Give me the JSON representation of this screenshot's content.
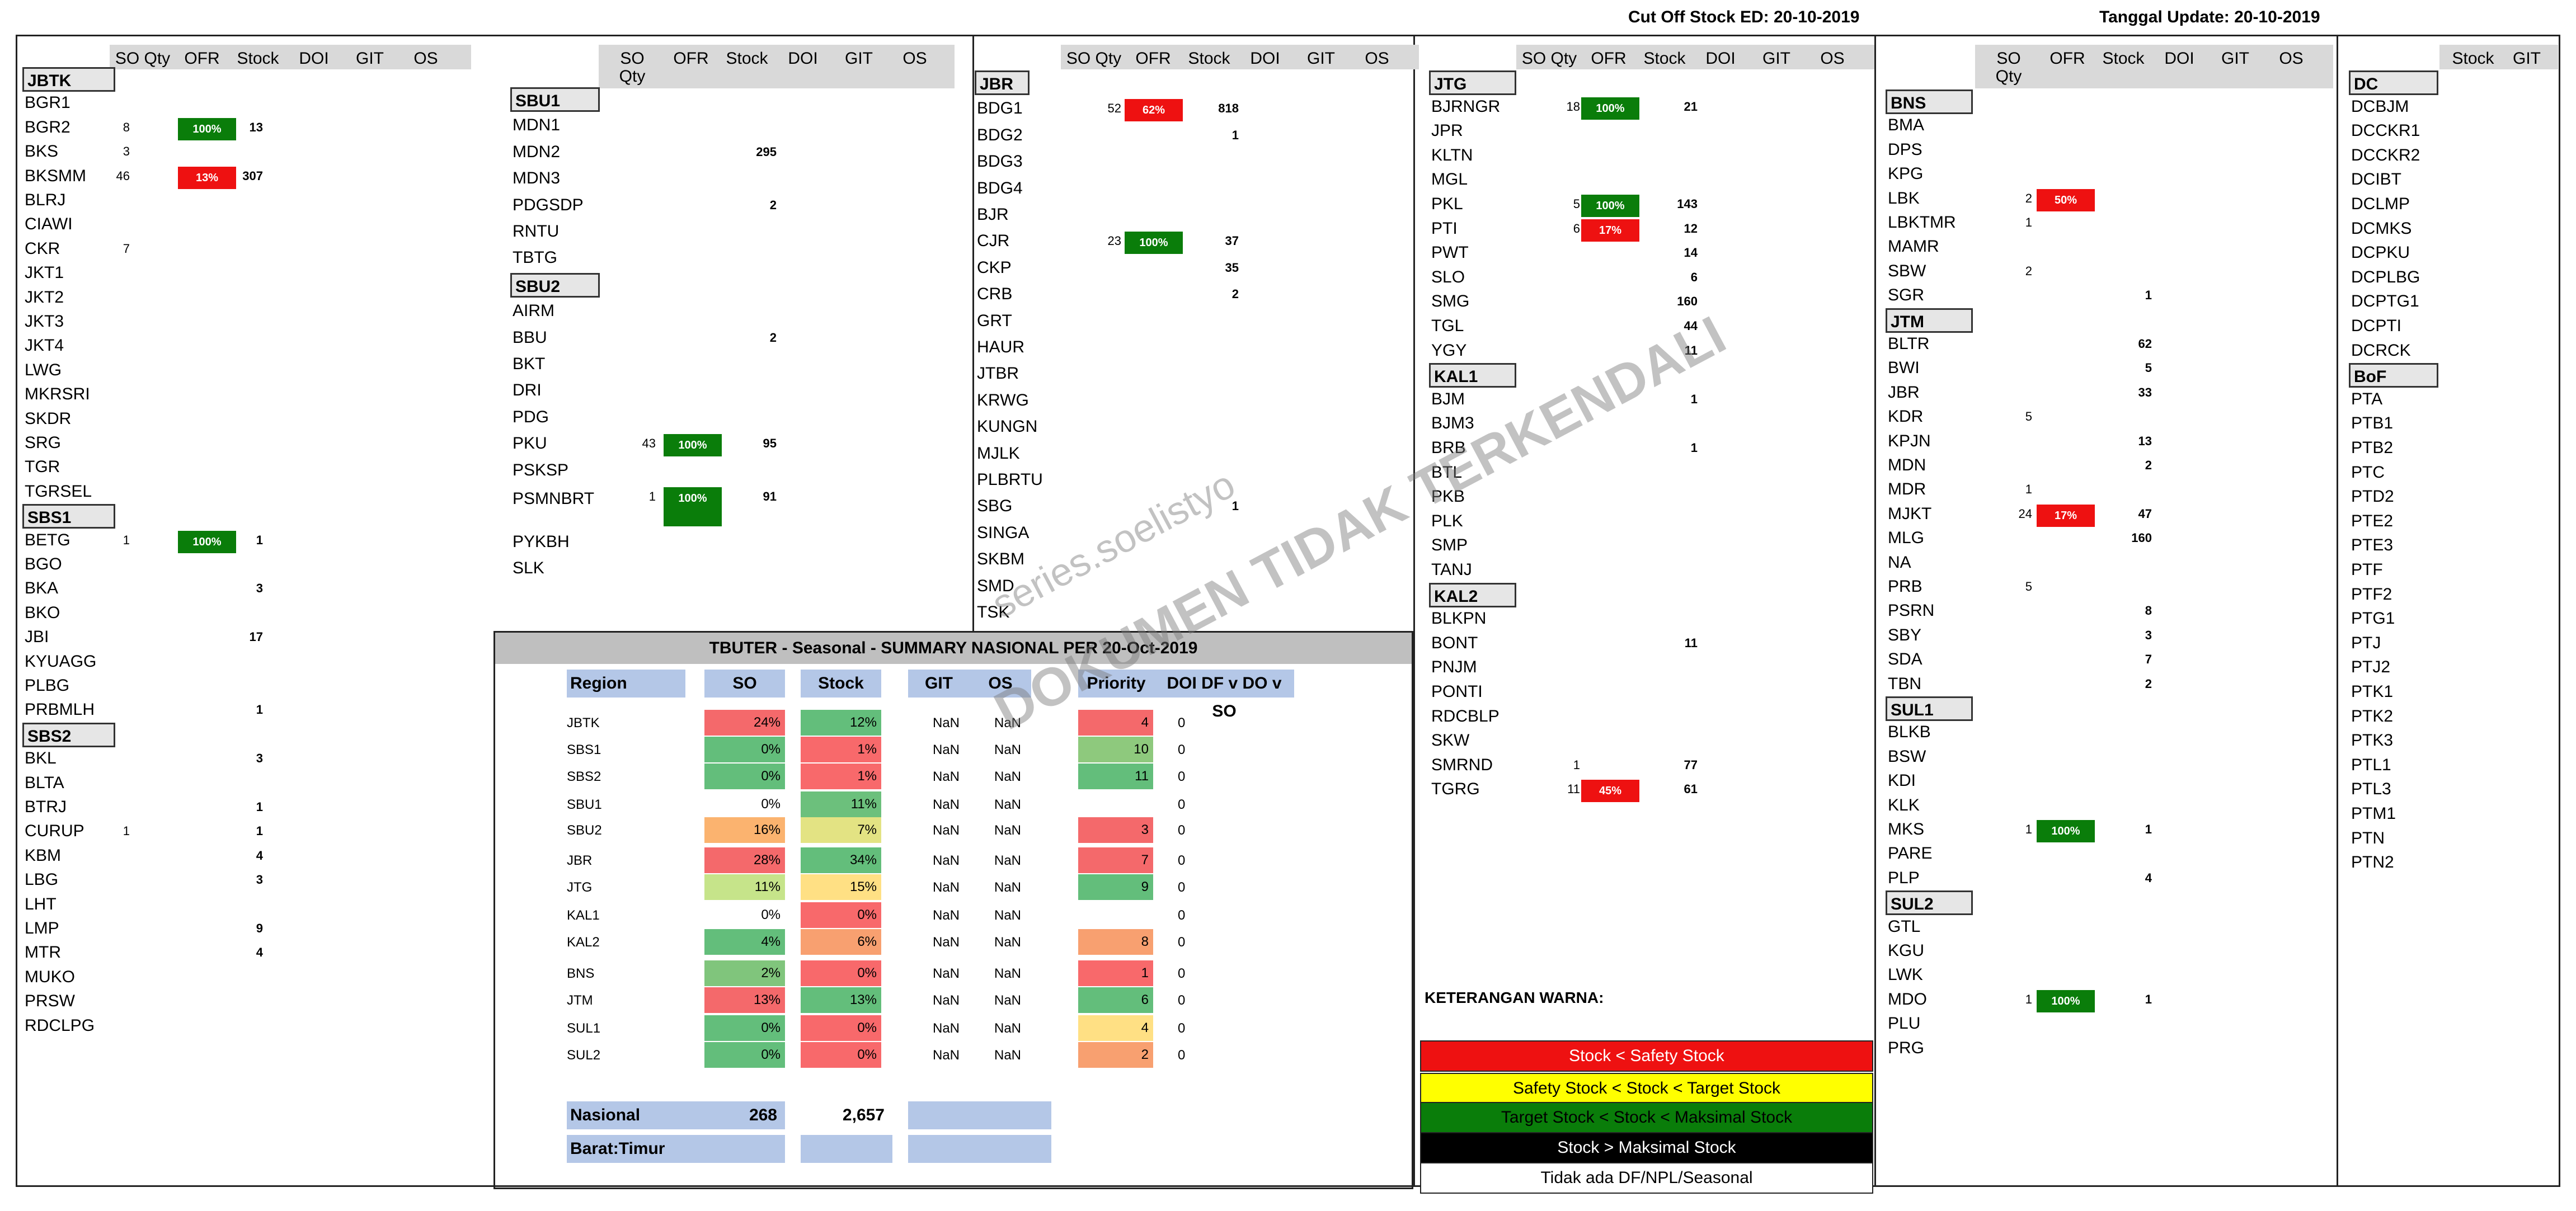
{
  "cutoff": "Cut Off Stock ED: 20-10-2019",
  "update": "Tanggal Update: 20-10-2019",
  "col_headers": {
    "so": "SO Qty",
    "so_a": "SO",
    "so_b": "Qty",
    "ofr": "OFR",
    "stock": "Stock",
    "doi": "DOI",
    "git": "GIT",
    "os": "OS"
  },
  "dc_headers": {
    "stock": "Stock",
    "git": "GIT"
  },
  "p1": {
    "groups": [
      {
        "name": "JBTK",
        "rows": [
          {
            "c": "BGR1"
          },
          {
            "c": "BGR2",
            "so": "8",
            "ofr": "100%",
            "col": "g",
            "stk": "13"
          },
          {
            "c": "BKS",
            "so": "3"
          },
          {
            "c": "BKSMM",
            "so": "46",
            "ofr": "13%",
            "col": "r",
            "stk": "307"
          },
          {
            "c": "BLRJ"
          },
          {
            "c": "CIAWI"
          },
          {
            "c": "CKR",
            "so": "7"
          },
          {
            "c": "JKT1"
          },
          {
            "c": "JKT2"
          },
          {
            "c": "JKT3"
          },
          {
            "c": "JKT4"
          },
          {
            "c": "LWG"
          },
          {
            "c": "MKRSRI"
          },
          {
            "c": "SKDR"
          },
          {
            "c": "SRG"
          },
          {
            "c": "TGR"
          },
          {
            "c": "TGRSEL"
          }
        ]
      },
      {
        "name": "SBS1",
        "rows": [
          {
            "c": "BETG",
            "so": "1",
            "ofr": "100%",
            "col": "g",
            "stk": "1"
          },
          {
            "c": "BGO"
          },
          {
            "c": "BKA",
            "stk": "3"
          },
          {
            "c": "BKO"
          },
          {
            "c": "JBI",
            "stk": "17"
          },
          {
            "c": "KYUAGG"
          },
          {
            "c": "PLBG"
          },
          {
            "c": "PRBMLH",
            "stk": "1"
          }
        ]
      },
      {
        "name": "SBS2",
        "rows": [
          {
            "c": "BKL",
            "stk": "3"
          },
          {
            "c": "BLTA"
          },
          {
            "c": "BTRJ",
            "stk": "1"
          },
          {
            "c": "CURUP",
            "so": "1",
            "stk": "1"
          },
          {
            "c": "KBM",
            "stk": "4"
          },
          {
            "c": "LBG",
            "stk": "3"
          },
          {
            "c": "LHT"
          },
          {
            "c": "LMP",
            "stk": "9"
          },
          {
            "c": "MTR",
            "stk": "4"
          },
          {
            "c": "MUKO"
          },
          {
            "c": "PRSW"
          },
          {
            "c": "RDCLPG"
          }
        ]
      }
    ]
  },
  "p2": {
    "groups": [
      {
        "name": "SBU1",
        "rows": [
          {
            "c": "MDN1"
          },
          {
            "c": "MDN2",
            "stk": "295"
          },
          {
            "c": "MDN3"
          },
          {
            "c": "PDGSDP",
            "stk": "2"
          },
          {
            "c": "RNTU"
          },
          {
            "c": "TBTG"
          }
        ]
      },
      {
        "name": "SBU2",
        "rows": [
          {
            "c": "AIRM"
          },
          {
            "c": "BBU",
            "stk": "2"
          },
          {
            "c": "BKT"
          },
          {
            "c": "DRI"
          },
          {
            "c": "PDG"
          },
          {
            "c": "PKU",
            "so": "43",
            "ofr": "100%",
            "col": "g",
            "stk": "95"
          },
          {
            "c": "PSKSP"
          },
          {
            "c": "PSMNBRT",
            "so": "1",
            "ofr": "100%",
            "col": "g",
            "stk": "91",
            "tall": true
          },
          {
            "c": "PYKBH"
          },
          {
            "c": "SLK"
          }
        ]
      }
    ]
  },
  "p3": {
    "groups": [
      {
        "name": "JBR",
        "rows": [
          {
            "c": "BDG1",
            "so": "52",
            "ofr": "62%",
            "col": "r",
            "stk": "818"
          },
          {
            "c": "BDG2",
            "stk": "1"
          },
          {
            "c": "BDG3"
          },
          {
            "c": "BDG4"
          },
          {
            "c": "BJR"
          },
          {
            "c": "CJR",
            "so": "23",
            "ofr": "100%",
            "col": "g",
            "stk": "37"
          },
          {
            "c": "CKP",
            "stk": "35"
          },
          {
            "c": "CRB",
            "stk": "2"
          },
          {
            "c": "GRT"
          },
          {
            "c": "HAUR"
          },
          {
            "c": "JTBR"
          },
          {
            "c": "KRWG"
          },
          {
            "c": "KUNGN"
          },
          {
            "c": "MJLK"
          },
          {
            "c": "PLBRTU"
          },
          {
            "c": "SBG",
            "stk": "1"
          },
          {
            "c": "SINGA"
          },
          {
            "c": "SKBM"
          },
          {
            "c": "SMD"
          },
          {
            "c": "TSK"
          }
        ]
      }
    ]
  },
  "p4": {
    "groups": [
      {
        "name": "JTG",
        "rows": [
          {
            "c": "BJRNGR",
            "so": "18",
            "ofr": "100%",
            "col": "g",
            "stk": "21"
          },
          {
            "c": "JPR"
          },
          {
            "c": "KLTN"
          },
          {
            "c": "MGL"
          },
          {
            "c": "PKL",
            "so": "5",
            "ofr": "100%",
            "col": "g",
            "stk": "143"
          },
          {
            "c": "PTI",
            "so": "6",
            "ofr": "17%",
            "col": "r",
            "stk": "12"
          },
          {
            "c": "PWT",
            "stk": "14"
          },
          {
            "c": "SLO",
            "stk": "6"
          },
          {
            "c": "SMG",
            "stk": "160"
          },
          {
            "c": "TGL",
            "stk": "44"
          },
          {
            "c": "YGY",
            "stk": "11"
          }
        ]
      },
      {
        "name": "KAL1",
        "rows": [
          {
            "c": "BJM",
            "stk": "1"
          },
          {
            "c": "BJM3"
          },
          {
            "c": "BRB",
            "stk": "1"
          },
          {
            "c": "BTL"
          },
          {
            "c": "PKB"
          },
          {
            "c": "PLK"
          },
          {
            "c": "SMP"
          },
          {
            "c": "TANJ"
          }
        ]
      },
      {
        "name": "KAL2",
        "rows": [
          {
            "c": "BLKPN"
          },
          {
            "c": "BONT",
            "stk": "11"
          },
          {
            "c": "PNJM"
          },
          {
            "c": "PONTI"
          },
          {
            "c": "RDCBLP"
          },
          {
            "c": "SKW"
          },
          {
            "c": "SMRND",
            "so": "1",
            "stk": "77"
          },
          {
            "c": "TGRG",
            "so": "11",
            "ofr": "45%",
            "col": "r",
            "stk": "61"
          }
        ]
      }
    ]
  },
  "p5": {
    "groups": [
      {
        "name": "BNS",
        "rows": [
          {
            "c": "BMA"
          },
          {
            "c": "DPS"
          },
          {
            "c": "KPG"
          },
          {
            "c": "LBK",
            "so": "2",
            "ofr": "50%",
            "col": "r"
          },
          {
            "c": "LBKTMR",
            "so": "1"
          },
          {
            "c": "MAMR"
          },
          {
            "c": "SBW",
            "so": "2"
          },
          {
            "c": "SGR",
            "stk": "1"
          }
        ]
      },
      {
        "name": "JTM",
        "rows": [
          {
            "c": "BLTR",
            "stk": "62"
          },
          {
            "c": "BWI",
            "stk": "5"
          },
          {
            "c": "JBR",
            "stk": "33"
          },
          {
            "c": "KDR",
            "so": "5"
          },
          {
            "c": "KPJN",
            "stk": "13"
          },
          {
            "c": "MDN",
            "stk": "2"
          },
          {
            "c": "MDR",
            "so": "1"
          },
          {
            "c": "MJKT",
            "so": "24",
            "ofr": "17%",
            "col": "r",
            "stk": "47"
          },
          {
            "c": "MLG",
            "stk": "160"
          },
          {
            "c": "NA"
          },
          {
            "c": "PRB",
            "so": "5"
          },
          {
            "c": "PSRN",
            "stk": "8"
          },
          {
            "c": "SBY",
            "stk": "3"
          },
          {
            "c": "SDA",
            "stk": "7"
          },
          {
            "c": "TBN",
            "stk": "2"
          }
        ]
      },
      {
        "name": "SUL1",
        "rows": [
          {
            "c": "BLKB"
          },
          {
            "c": "BSW"
          },
          {
            "c": "KDI"
          },
          {
            "c": "KLK"
          },
          {
            "c": "MKS",
            "so": "1",
            "ofr": "100%",
            "col": "g",
            "stk": "1"
          },
          {
            "c": "PARE"
          },
          {
            "c": "PLP",
            "stk": "4"
          }
        ]
      },
      {
        "name": "SUL2",
        "rows": [
          {
            "c": "GTL"
          },
          {
            "c": "KGU"
          },
          {
            "c": "LWK"
          },
          {
            "c": "MDO",
            "so": "1",
            "ofr": "100%",
            "col": "g",
            "stk": "1"
          },
          {
            "c": "PLU"
          },
          {
            "c": "PRG"
          }
        ]
      }
    ]
  },
  "p6": {
    "groups": [
      {
        "name": "DC",
        "rows": [
          {
            "c": "DCBJM"
          },
          {
            "c": "DCCKR1"
          },
          {
            "c": "DCCKR2"
          },
          {
            "c": "DCIBT"
          },
          {
            "c": "DCLMP"
          },
          {
            "c": "DCMKS"
          },
          {
            "c": "DCPKU"
          },
          {
            "c": "DCPLBG"
          },
          {
            "c": "DCPTG1"
          },
          {
            "c": "DCPTI"
          },
          {
            "c": "DCRCK"
          }
        ]
      },
      {
        "name": "BoF",
        "rows": [
          {
            "c": "PTA"
          },
          {
            "c": "PTB1"
          },
          {
            "c": "PTB2"
          },
          {
            "c": "PTC"
          },
          {
            "c": "PTD2"
          },
          {
            "c": "PTE2"
          },
          {
            "c": "PTE3"
          },
          {
            "c": "PTF"
          },
          {
            "c": "PTF2"
          },
          {
            "c": "PTG1"
          },
          {
            "c": "PTJ"
          },
          {
            "c": "PTJ2"
          },
          {
            "c": "PTK1"
          },
          {
            "c": "PTK2"
          },
          {
            "c": "PTK3"
          },
          {
            "c": "PTL1"
          },
          {
            "c": "PTL3"
          },
          {
            "c": "PTM1"
          },
          {
            "c": "PTN"
          },
          {
            "c": "PTN2"
          }
        ]
      }
    ]
  },
  "summary": {
    "title": "TBUTER - Seasonal - SUMMARY NASIONAL PER 20-Oct-2019",
    "headers": {
      "region": "Region",
      "so": "SO",
      "stock": "Stock",
      "git": "GIT",
      "os": "OS",
      "priority": "Priority",
      "doi": "DOI DF v DO v SO"
    },
    "rows": [
      {
        "r": "JBTK",
        "so": "24%",
        "soc": "#f4696b",
        "st": "12%",
        "stc": "#63be7b",
        "git": "NaN",
        "os": "NaN",
        "p": "4",
        "pc": "#f4696b",
        "d": "0"
      },
      {
        "r": "SBS1",
        "so": "0%",
        "soc": "#63be7b",
        "st": "1%",
        "stc": "#f8696b",
        "git": "NaN",
        "os": "NaN",
        "p": "10",
        "pc": "#8ec97d",
        "d": "0"
      },
      {
        "r": "SBS2",
        "so": "0%",
        "soc": "#63be7b",
        "st": "1%",
        "stc": "#f8696b",
        "git": "NaN",
        "os": "NaN",
        "p": "11",
        "pc": "#63be7b",
        "d": "0"
      },
      {
        "r": "SBU1",
        "so": "0%",
        "soc": "",
        "st": "11%",
        "stc": "#6cc07c",
        "git": "NaN",
        "os": "NaN",
        "p": "",
        "pc": "",
        "d": "0"
      },
      {
        "r": "SBU2",
        "so": "16%",
        "soc": "#fbb36f",
        "st": "7%",
        "stc": "#e3e383",
        "git": "NaN",
        "os": "NaN",
        "p": "3",
        "pc": "#f4696b",
        "d": "0"
      },
      {
        "r": "JBR",
        "so": "28%",
        "soc": "#f4696b",
        "st": "34%",
        "stc": "#63be7b",
        "git": "NaN",
        "os": "NaN",
        "p": "7",
        "pc": "#f4696b",
        "d": "0"
      },
      {
        "r": "JTG",
        "so": "11%",
        "soc": "#c6e48a",
        "st": "15%",
        "stc": "#ffe084",
        "git": "NaN",
        "os": "NaN",
        "p": "9",
        "pc": "#63be7b",
        "d": "0"
      },
      {
        "r": "KAL1",
        "so": "0%",
        "soc": "",
        "st": "0%",
        "stc": "#f8696b",
        "git": "NaN",
        "os": "NaN",
        "p": "",
        "pc": "",
        "d": "0"
      },
      {
        "r": "KAL2",
        "so": "4%",
        "soc": "#63be7b",
        "st": "6%",
        "stc": "#f8a070",
        "git": "NaN",
        "os": "NaN",
        "p": "8",
        "pc": "#f8a070",
        "d": "0"
      },
      {
        "r": "BNS",
        "so": "2%",
        "soc": "#80c57c",
        "st": "0%",
        "stc": "#f8696b",
        "git": "NaN",
        "os": "NaN",
        "p": "1",
        "pc": "#f8696b",
        "d": "0"
      },
      {
        "r": "JTM",
        "so": "13%",
        "soc": "#f4696b",
        "st": "13%",
        "stc": "#63be7b",
        "git": "NaN",
        "os": "NaN",
        "p": "6",
        "pc": "#63be7b",
        "d": "0"
      },
      {
        "r": "SUL1",
        "so": "0%",
        "soc": "#63be7b",
        "st": "0%",
        "stc": "#f8696b",
        "git": "NaN",
        "os": "NaN",
        "p": "4",
        "pc": "#ffe084",
        "d": "0"
      },
      {
        "r": "SUL2",
        "so": "0%",
        "soc": "#63be7b",
        "st": "0%",
        "stc": "#f8696b",
        "git": "NaN",
        "os": "NaN",
        "p": "2",
        "pc": "#f8a070",
        "d": "0"
      }
    ],
    "nasional_label": "Nasional",
    "nasional_so": "268",
    "nasional_stock": "2,657",
    "barat_label": "Barat:Timur"
  },
  "legend": {
    "title": "KETERANGAN WARNA:",
    "items": [
      {
        "text": "Stock < Safety Stock",
        "bg": "#ee1111",
        "fg": "#ffffff"
      },
      {
        "text": "Safety Stock < Stock < Target Stock",
        "bg": "#ffff00",
        "fg": "#000000"
      },
      {
        "text": "Target Stock < Stock < Maksimal Stock",
        "bg": "#0a7d0a",
        "fg": "#000000"
      },
      {
        "text": "Stock > Maksimal Stock",
        "bg": "#000000",
        "fg": "#ffffff"
      },
      {
        "text": "Tidak ada DF/NPL/Seasonal",
        "bg": "#ffffff",
        "fg": "#000000"
      }
    ]
  },
  "watermark": {
    "line1": "series.soelistyo",
    "line2": "DOKUMEN TIDAK TERKENDALI"
  }
}
